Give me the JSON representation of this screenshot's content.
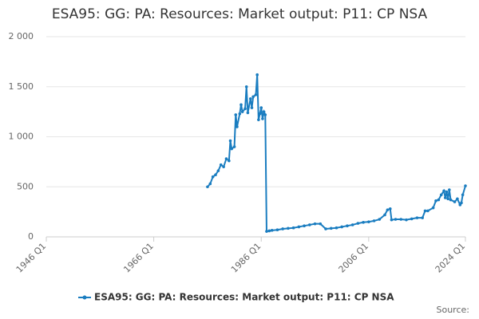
{
  "chart_data": {
    "type": "line",
    "title": "ESA95: GG: PA: Resources: Market output: P11: CP NSA",
    "source_label": "Source:",
    "x": [
      1976,
      1976.5,
      1977,
      1977.5,
      1978,
      1978.5,
      1979,
      1979.5,
      1980,
      1980.25,
      1980.5,
      1981,
      1981.25,
      1981.5,
      1982,
      1982.25,
      1982.5,
      1983,
      1983.25,
      1983.5,
      1984,
      1984.25,
      1984.5,
      1985,
      1985.25,
      1985.5,
      1985.75,
      1986,
      1986.25,
      1986.5,
      1986.75,
      1987,
      1987.5,
      1988,
      1989,
      1990,
      1991,
      1992,
      1993,
      1994,
      1995,
      1996,
      1997,
      1998,
      1999,
      2000,
      2001,
      2002,
      2003,
      2004,
      2005,
      2006,
      2007,
      2008,
      2009,
      2009.5,
      2010,
      2010.25,
      2011,
      2012,
      2013,
      2014,
      2015,
      2016,
      2016.5,
      2017,
      2018,
      2018.5,
      2019,
      2019.5,
      2020,
      2020.25,
      2020.5,
      2020.75,
      2021,
      2021.25,
      2022,
      2022.5,
      2023,
      2023.25,
      2023.5,
      2024
    ],
    "series": [
      {
        "name": "ESA95: GG: PA: Resources: Market output: P11: CP NSA",
        "color": "#1a7dc0",
        "values": [
          500,
          530,
          600,
          620,
          660,
          720,
          700,
          780,
          760,
          960,
          880,
          900,
          1220,
          1100,
          1230,
          1320,
          1250,
          1280,
          1500,
          1240,
          1380,
          1290,
          1400,
          1420,
          1620,
          1170,
          1230,
          1290,
          1180,
          1250,
          1220,
          55,
          60,
          65,
          70,
          80,
          85,
          90,
          100,
          110,
          120,
          130,
          130,
          80,
          85,
          90,
          100,
          110,
          120,
          135,
          145,
          150,
          160,
          175,
          220,
          270,
          280,
          170,
          175,
          175,
          170,
          180,
          190,
          190,
          260,
          260,
          290,
          360,
          370,
          420,
          460,
          390,
          450,
          380,
          470,
          370,
          350,
          380,
          320,
          340,
          420,
          510
        ]
      }
    ],
    "xlim": [
      1946,
      2024
    ],
    "xticks": [
      {
        "value": 1946,
        "label": "1946 Q1"
      },
      {
        "value": 1966,
        "label": "1966 Q1"
      },
      {
        "value": 1986,
        "label": "1986 Q1"
      },
      {
        "value": 2006,
        "label": "2006 Q1"
      },
      {
        "value": 2024,
        "label": "2024 Q1"
      }
    ],
    "ylim": [
      0,
      2000
    ],
    "yticks": [
      0,
      500,
      {
        "value": 1000,
        "label": "1 000"
      },
      {
        "value": 1500,
        "label": "1 500"
      },
      {
        "value": 2000,
        "label": "2 000"
      }
    ],
    "grid": true,
    "legend": "bottom"
  }
}
